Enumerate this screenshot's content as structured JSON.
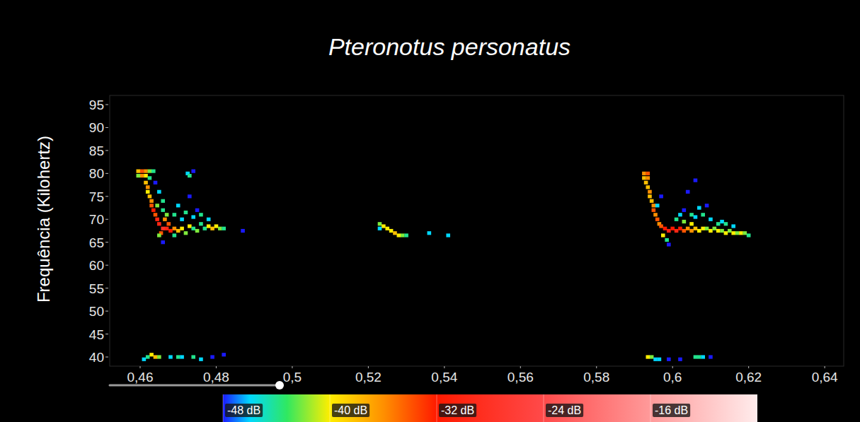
{
  "chart_data": {
    "type": "spectrogram",
    "title": "Pteronotus personatus",
    "y_label": "Frequência (Kilohertz)",
    "xlim": [
      0.452,
      0.645
    ],
    "xticks": [
      {
        "value": 0.46,
        "label": "0,46"
      },
      {
        "value": 0.48,
        "label": "0,48"
      },
      {
        "value": 0.5,
        "label": "0,5"
      },
      {
        "value": 0.52,
        "label": "0,52"
      },
      {
        "value": 0.54,
        "label": "0,54"
      },
      {
        "value": 0.56,
        "label": "0,56"
      },
      {
        "value": 0.58,
        "label": "0,58"
      },
      {
        "value": 0.6,
        "label": "0,6"
      },
      {
        "value": 0.62,
        "label": "0,62"
      },
      {
        "value": 0.64,
        "label": "0,64"
      }
    ],
    "ylim": [
      38,
      97
    ],
    "yticks": [
      40,
      45,
      50,
      55,
      60,
      65,
      70,
      75,
      80,
      85,
      90,
      95
    ],
    "colorbar_range": [
      -48,
      -8
    ],
    "colorbar_ticks": [
      {
        "value": -48,
        "label": "-48 dB"
      },
      {
        "value": -40,
        "label": "-40 dB"
      },
      {
        "value": -32,
        "label": "-32 dB"
      },
      {
        "value": -24,
        "label": "-24 dB"
      },
      {
        "value": -16,
        "label": "-16 dB"
      }
    ],
    "cells": [
      [
        0.4595,
        80.5,
        -38
      ],
      [
        0.4605,
        80.5,
        -34
      ],
      [
        0.4615,
        80.5,
        -36
      ],
      [
        0.4625,
        80.5,
        -42
      ],
      [
        0.4635,
        80.5,
        -44
      ],
      [
        0.4605,
        79.5,
        -36
      ],
      [
        0.4615,
        79.5,
        -40
      ],
      [
        0.4625,
        79,
        -44
      ],
      [
        0.4595,
        79.5,
        -42
      ],
      [
        0.4615,
        78,
        -38
      ],
      [
        0.462,
        77,
        -36
      ],
      [
        0.462,
        76,
        -40
      ],
      [
        0.4625,
        75,
        -38
      ],
      [
        0.463,
        74,
        -36
      ],
      [
        0.463,
        73,
        -34
      ],
      [
        0.4635,
        72,
        -32
      ],
      [
        0.464,
        71,
        -34
      ],
      [
        0.4645,
        70,
        -30
      ],
      [
        0.465,
        76,
        -46
      ],
      [
        0.466,
        74,
        -44
      ],
      [
        0.4645,
        73,
        -42
      ],
      [
        0.466,
        72,
        -44
      ],
      [
        0.467,
        71,
        -42
      ],
      [
        0.464,
        78,
        -48
      ],
      [
        0.465,
        69,
        -30
      ],
      [
        0.466,
        68,
        -28
      ],
      [
        0.467,
        68,
        -30
      ],
      [
        0.468,
        67.5,
        -32
      ],
      [
        0.4655,
        67,
        -34
      ],
      [
        0.4665,
        70,
        -36
      ],
      [
        0.4675,
        69,
        -34
      ],
      [
        0.469,
        68,
        -36
      ],
      [
        0.47,
        67.5,
        -38
      ],
      [
        0.471,
        68,
        -40
      ],
      [
        0.472,
        67,
        -42
      ],
      [
        0.473,
        68.5,
        -40
      ],
      [
        0.474,
        68,
        -44
      ],
      [
        0.475,
        67.5,
        -42
      ],
      [
        0.476,
        69,
        -44
      ],
      [
        0.477,
        68,
        -44
      ],
      [
        0.478,
        68.5,
        -40
      ],
      [
        0.479,
        68,
        -38
      ],
      [
        0.48,
        68.5,
        -40
      ],
      [
        0.481,
        68,
        -42
      ],
      [
        0.482,
        68,
        -44
      ],
      [
        0.487,
        67.5,
        -48
      ],
      [
        0.469,
        71,
        -44
      ],
      [
        0.471,
        70,
        -46
      ],
      [
        0.472,
        71.5,
        -44
      ],
      [
        0.474,
        70.5,
        -46
      ],
      [
        0.475,
        72,
        -48
      ],
      [
        0.476,
        71,
        -44
      ],
      [
        0.47,
        73,
        -46
      ],
      [
        0.473,
        75,
        -48
      ],
      [
        0.4725,
        80,
        -46
      ],
      [
        0.474,
        80.5,
        -48
      ],
      [
        0.473,
        79.5,
        -44
      ],
      [
        0.478,
        70,
        -46
      ],
      [
        0.465,
        66.5,
        -42
      ],
      [
        0.466,
        65,
        -48
      ],
      [
        0.469,
        66.5,
        -44
      ],
      [
        0.462,
        40,
        -44
      ],
      [
        0.463,
        40.5,
        -40
      ],
      [
        0.464,
        40,
        -38
      ],
      [
        0.465,
        40,
        -42
      ],
      [
        0.461,
        39.5,
        -46
      ],
      [
        0.468,
        40,
        -46
      ],
      [
        0.47,
        40,
        -44
      ],
      [
        0.471,
        40,
        -46
      ],
      [
        0.474,
        40,
        -44
      ],
      [
        0.476,
        39.5,
        -46
      ],
      [
        0.479,
        40,
        -48
      ],
      [
        0.482,
        40.5,
        -48
      ],
      [
        0.523,
        69,
        -42
      ],
      [
        0.524,
        68.5,
        -40
      ],
      [
        0.525,
        68,
        -40
      ],
      [
        0.526,
        67.5,
        -40
      ],
      [
        0.527,
        67,
        -38
      ],
      [
        0.528,
        66.5,
        -40
      ],
      [
        0.529,
        66.5,
        -42
      ],
      [
        0.53,
        66.5,
        -44
      ],
      [
        0.523,
        68,
        -46
      ],
      [
        0.536,
        67,
        -46
      ],
      [
        0.541,
        66.5,
        -46
      ],
      [
        0.5925,
        80,
        -36
      ],
      [
        0.5935,
        80,
        -34
      ],
      [
        0.5925,
        79,
        -38
      ],
      [
        0.5935,
        79,
        -36
      ],
      [
        0.593,
        78,
        -38
      ],
      [
        0.5935,
        77,
        -38
      ],
      [
        0.594,
        76,
        -36
      ],
      [
        0.594,
        75,
        -38
      ],
      [
        0.5945,
        74,
        -38
      ],
      [
        0.595,
        73,
        -36
      ],
      [
        0.595,
        72,
        -34
      ],
      [
        0.5955,
        71,
        -36
      ],
      [
        0.596,
        70,
        -34
      ],
      [
        0.5965,
        69,
        -36
      ],
      [
        0.597,
        68.5,
        -34
      ],
      [
        0.598,
        68,
        -32
      ],
      [
        0.599,
        67.5,
        -30
      ],
      [
        0.6,
        68,
        -32
      ],
      [
        0.601,
        67.5,
        -30
      ],
      [
        0.602,
        68,
        -32
      ],
      [
        0.603,
        67.5,
        -34
      ],
      [
        0.604,
        68,
        -36
      ],
      [
        0.605,
        67.5,
        -36
      ],
      [
        0.606,
        68,
        -38
      ],
      [
        0.607,
        67.5,
        -40
      ],
      [
        0.608,
        68,
        -40
      ],
      [
        0.609,
        68,
        -42
      ],
      [
        0.61,
        67.5,
        -40
      ],
      [
        0.611,
        68,
        -42
      ],
      [
        0.612,
        67.5,
        -40
      ],
      [
        0.613,
        67.5,
        -42
      ],
      [
        0.614,
        67,
        -40
      ],
      [
        0.615,
        67.5,
        -42
      ],
      [
        0.616,
        67,
        -40
      ],
      [
        0.617,
        67,
        -42
      ],
      [
        0.618,
        67,
        -40
      ],
      [
        0.619,
        67,
        -42
      ],
      [
        0.62,
        66.5,
        -44
      ],
      [
        0.5975,
        66.5,
        -40
      ],
      [
        0.5985,
        65.5,
        -44
      ],
      [
        0.599,
        64.5,
        -48
      ],
      [
        0.596,
        73,
        -46
      ],
      [
        0.597,
        75,
        -48
      ],
      [
        0.601,
        70,
        -44
      ],
      [
        0.602,
        71,
        -46
      ],
      [
        0.603,
        72,
        -48
      ],
      [
        0.605,
        71,
        -44
      ],
      [
        0.606,
        70.5,
        -46
      ],
      [
        0.607,
        72.5,
        -46
      ],
      [
        0.608,
        71,
        -44
      ],
      [
        0.609,
        73,
        -48
      ],
      [
        0.61,
        70,
        -46
      ],
      [
        0.612,
        69,
        -44
      ],
      [
        0.613,
        69.5,
        -46
      ],
      [
        0.614,
        69,
        -44
      ],
      [
        0.616,
        68.5,
        -46
      ],
      [
        0.604,
        76,
        -48
      ],
      [
        0.606,
        78.5,
        -48
      ],
      [
        0.603,
        69.5,
        -42
      ],
      [
        0.605,
        69,
        -40
      ],
      [
        0.5935,
        40,
        -40
      ],
      [
        0.5945,
        40,
        -42
      ],
      [
        0.5955,
        39.5,
        -46
      ],
      [
        0.5965,
        39.5,
        -46
      ],
      [
        0.599,
        39.5,
        -48
      ],
      [
        0.602,
        39.5,
        -48
      ],
      [
        0.606,
        40,
        -44
      ],
      [
        0.607,
        40,
        -44
      ],
      [
        0.608,
        40,
        -46
      ],
      [
        0.61,
        40,
        -48
      ]
    ]
  }
}
